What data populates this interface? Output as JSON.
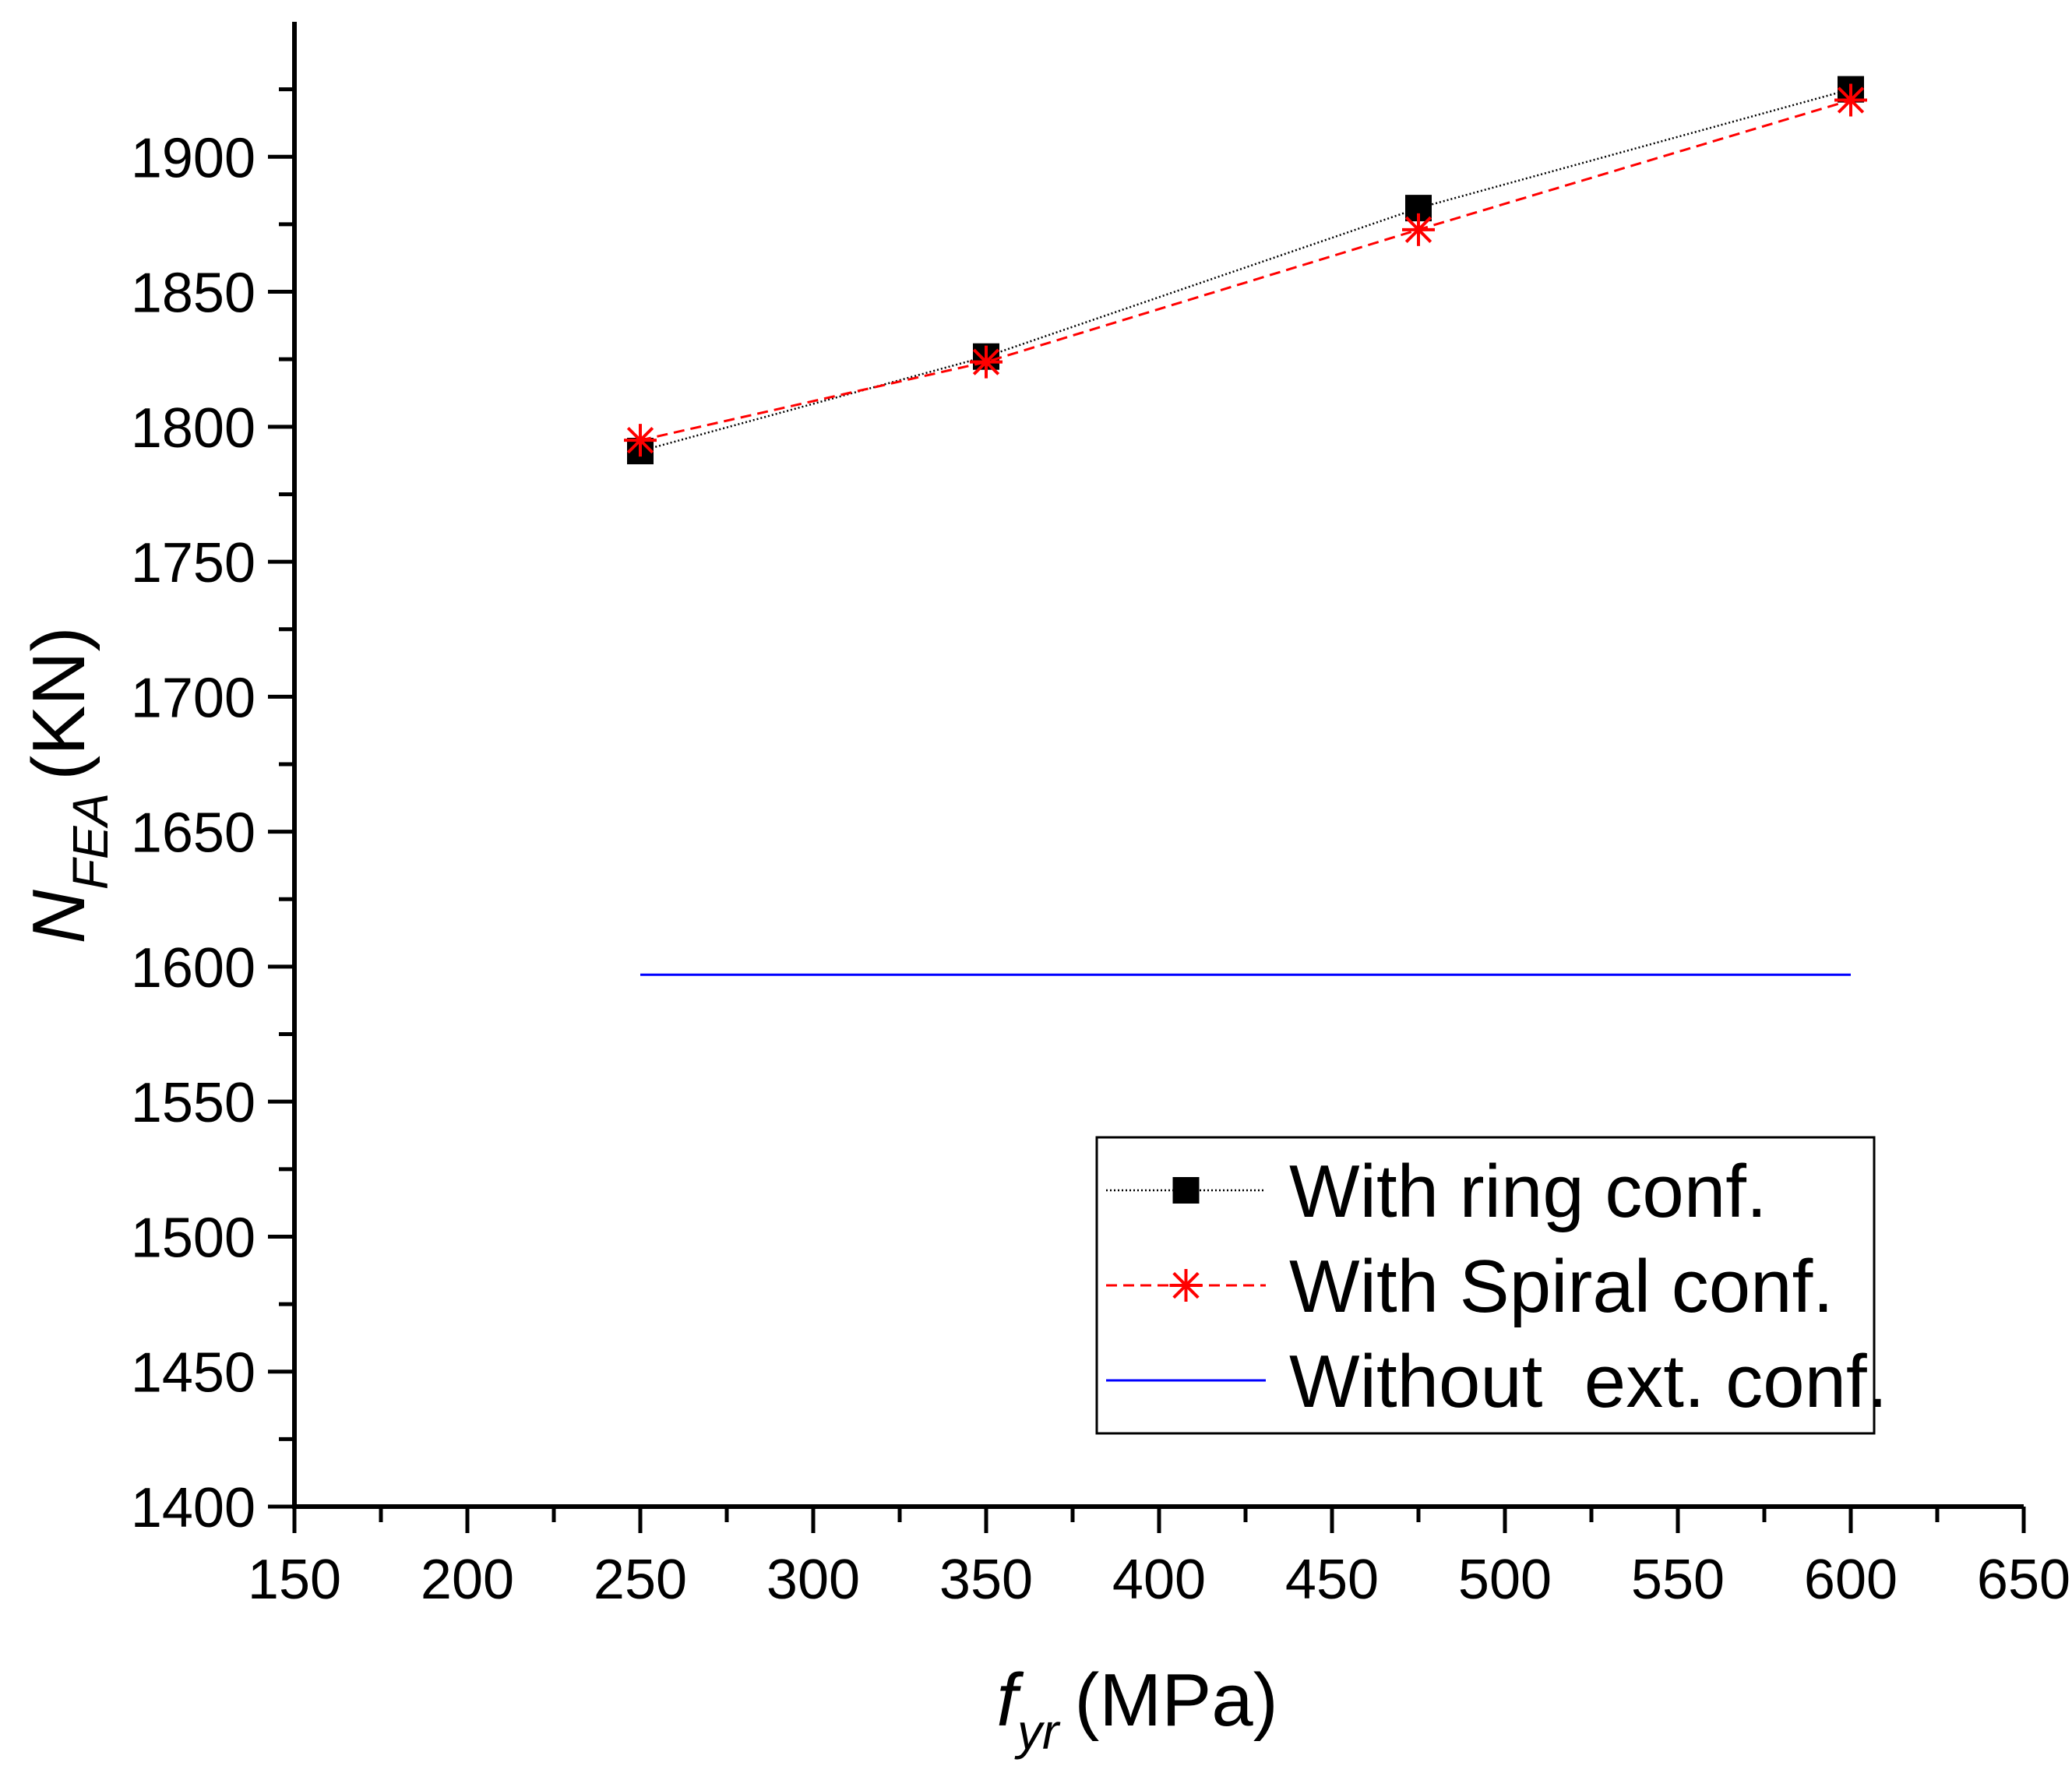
{
  "chart_data": {
    "type": "line",
    "x": [
      250,
      350,
      475,
      600
    ],
    "xlim": [
      150,
      650
    ],
    "ylim": [
      1400,
      1950
    ],
    "xticks": [
      150,
      200,
      250,
      300,
      350,
      400,
      450,
      500,
      550,
      600,
      650
    ],
    "yticks": [
      1400,
      1450,
      1500,
      1550,
      1600,
      1650,
      1700,
      1750,
      1800,
      1850,
      1900
    ],
    "xlabel": {
      "symbol": "f",
      "subscript": "yr",
      "unit": "(MPa)"
    },
    "ylabel": {
      "symbol": "N",
      "subscript": "FEA",
      "unit": "(KN)"
    },
    "legend_position": "bottom-right",
    "series": [
      {
        "name": "With ring conf.",
        "values": [
          1791,
          1826,
          1881,
          1925
        ],
        "color": "#000000",
        "marker": "square",
        "line": "dotted"
      },
      {
        "name": "With Spiral conf.",
        "values": [
          1795,
          1824,
          1873,
          1921
        ],
        "color": "#ff0000",
        "marker": "asterisk",
        "line": "dashed"
      },
      {
        "name": "Without  ext. conf.",
        "values": [
          1597,
          1597,
          1597,
          1597
        ],
        "color": "#0000ff",
        "marker": "none",
        "line": "solid"
      }
    ]
  }
}
